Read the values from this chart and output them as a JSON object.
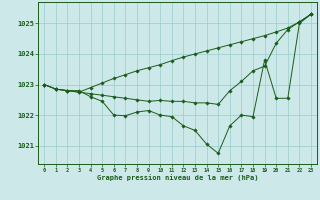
{
  "background_color": "#cce8e8",
  "grid_color": "#99cccc",
  "line_color": "#1a5c1a",
  "marker_color": "#1a5c1a",
  "xlabel": "Graphe pression niveau de la mer (hPa)",
  "xlabel_color": "#1a5c1a",
  "tick_color": "#1a5c1a",
  "yticks": [
    1021,
    1022,
    1023,
    1024,
    1025
  ],
  "xticks": [
    0,
    1,
    2,
    3,
    4,
    5,
    6,
    7,
    8,
    9,
    10,
    11,
    12,
    13,
    14,
    15,
    16,
    17,
    18,
    19,
    20,
    21,
    22,
    23
  ],
  "xlim": [
    -0.5,
    23.5
  ],
  "ylim": [
    1020.4,
    1025.7
  ],
  "series1": [
    1023.0,
    1022.85,
    1022.8,
    1022.8,
    1022.6,
    1022.45,
    1022.0,
    1021.98,
    1022.1,
    1022.15,
    1022.0,
    1021.95,
    1021.65,
    1021.5,
    1021.05,
    1020.75,
    1021.65,
    1022.0,
    1021.95,
    1023.8,
    1022.55,
    1022.55,
    1025.0,
    1025.3
  ],
  "series2": [
    1023.0,
    1022.85,
    1022.8,
    1022.75,
    1022.7,
    1022.65,
    1022.6,
    1022.55,
    1022.5,
    1022.45,
    1022.48,
    1022.45,
    1022.45,
    1022.4,
    1022.4,
    1022.35,
    1022.8,
    1023.1,
    1023.45,
    1023.6,
    1024.35,
    1024.8,
    1025.05,
    1025.3
  ],
  "series3": [
    1023.0,
    1022.85,
    1022.8,
    1022.75,
    1022.9,
    1023.05,
    1023.2,
    1023.32,
    1023.45,
    1023.55,
    1023.65,
    1023.78,
    1023.9,
    1024.0,
    1024.1,
    1024.2,
    1024.3,
    1024.4,
    1024.5,
    1024.6,
    1024.72,
    1024.85,
    1025.05,
    1025.3
  ]
}
